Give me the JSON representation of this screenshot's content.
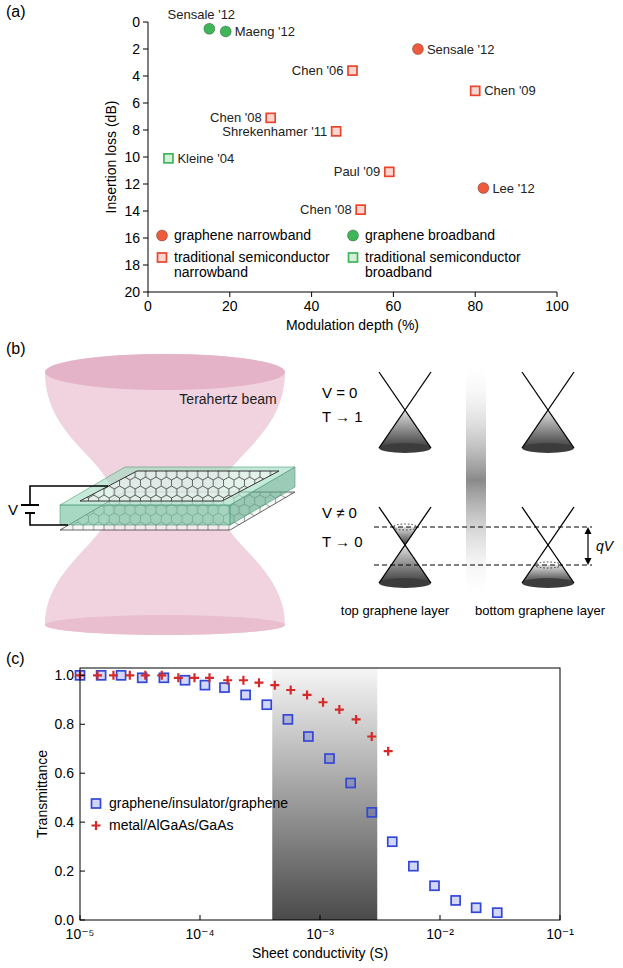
{
  "chart_data": [
    {
      "type": "scatter",
      "title": "(a)",
      "x_label": "Modulation depth (%)",
      "y_label": "Insertion loss (dB)",
      "xlim": [
        0,
        100
      ],
      "xticks": [
        0,
        20,
        40,
        60,
        80,
        100
      ],
      "ylim": [
        20,
        0
      ],
      "yticks": [
        0,
        2,
        4,
        6,
        8,
        10,
        12,
        14,
        16,
        18,
        20
      ],
      "legend": "bottom",
      "series": [
        {
          "name": "graphene narrowband",
          "color": "#ee5a3c",
          "marker": "circle",
          "x": [
            66,
            82
          ],
          "values": [
            2,
            12.3
          ],
          "point_labels": [
            "Sensale '12",
            "Lee '12"
          ]
        },
        {
          "name": "graphene broadband",
          "color": "#3fb65a",
          "marker": "circle",
          "x": [
            15,
            19
          ],
          "values": [
            0.5,
            0.7
          ],
          "point_labels": [
            "Sensale '12",
            "Maeng '12"
          ]
        },
        {
          "name": "traditional semiconductor narrowband",
          "color": "#e8452a",
          "marker": "square",
          "x": [
            50,
            80,
            30,
            46,
            59,
            52
          ],
          "values": [
            3.6,
            5.1,
            7.1,
            8.1,
            11.1,
            13.9
          ],
          "point_labels": [
            "Chen '06",
            "Chen '09",
            "Chen '08",
            "Shrekenhamer '11",
            "Paul '09",
            "Chen '08"
          ]
        },
        {
          "name": "traditional semiconductor broadband",
          "color": "#3fb65a",
          "marker": "square",
          "x": [
            5
          ],
          "values": [
            10.1
          ],
          "point_labels": [
            "Kleine '04"
          ]
        }
      ]
    },
    {
      "type": "scatter",
      "title": "(c)",
      "x_label": "Sheet conductivity (S)",
      "y_label": "Transmittance",
      "log": "x",
      "xlim": [
        1e-05,
        0.1
      ],
      "xticks": [
        {
          "value": 1e-05,
          "label": "10⁻⁵"
        },
        {
          "value": 0.0001,
          "label": "10⁻⁴"
        },
        {
          "value": 0.001,
          "label": "10⁻³"
        },
        {
          "value": 0.01,
          "label": "10⁻²"
        },
        {
          "value": 0.1,
          "label": "10⁻¹"
        }
      ],
      "ylim": [
        0,
        1.03
      ],
      "yticks": [
        {
          "value": 0,
          "label": "0.0"
        },
        0.2,
        0.4,
        0.6,
        0.8,
        {
          "value": 1,
          "label": "1.0"
        }
      ],
      "shaded_range": [
        0.0004,
        0.003
      ],
      "legend": "left",
      "series": [
        {
          "name": "graphene/insulator/graphene",
          "color": "#3347d6",
          "marker": "square",
          "x": [
            1e-05,
            1.5e-05,
            2.2e-05,
            3.3e-05,
            5e-05,
            7.5e-05,
            0.00011,
            0.00016,
            0.00024,
            0.00036,
            0.00054,
            0.0008,
            0.0012,
            0.0018,
            0.0027,
            0.004,
            0.006,
            0.009,
            0.0135,
            0.02,
            0.03
          ],
          "values": [
            1.0,
            1.0,
            1.0,
            0.99,
            0.99,
            0.98,
            0.96,
            0.95,
            0.92,
            0.88,
            0.82,
            0.75,
            0.66,
            0.56,
            0.44,
            0.32,
            0.22,
            0.14,
            0.08,
            0.05,
            0.03
          ]
        },
        {
          "name": "metal/AlGaAs/GaAs",
          "color": "#d42a2a",
          "marker": "plus",
          "x": [
            1e-05,
            1.4e-05,
            1.9e-05,
            2.6e-05,
            3.5e-05,
            4.8e-05,
            6.6e-05,
            9e-05,
            0.00012,
            0.00017,
            0.00023,
            0.00031,
            0.00042,
            0.00057,
            0.00078,
            0.00106,
            0.00145,
            0.002,
            0.0027,
            0.0037
          ],
          "values": [
            1.0,
            1.0,
            1.0,
            1.0,
            1.0,
            1.0,
            0.99,
            0.99,
            0.99,
            0.98,
            0.98,
            0.97,
            0.96,
            0.94,
            0.92,
            0.89,
            0.86,
            0.82,
            0.75,
            0.69
          ]
        }
      ]
    }
  ],
  "diagram": {
    "title": "(b)",
    "beam_label": "Terahertz beam",
    "source_label": "V",
    "states": [
      {
        "voltage": "V = 0",
        "transmittance": "T → 1"
      },
      {
        "voltage": "V ≠ 0",
        "transmittance": "T → 0"
      }
    ],
    "energy_label": "qV",
    "layers": [
      "top graphene layer",
      "bottom graphene layer"
    ]
  }
}
